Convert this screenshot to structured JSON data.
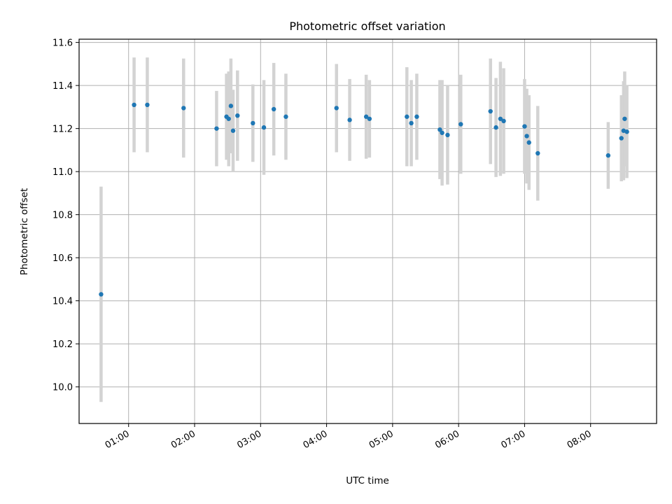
{
  "chart_data": {
    "type": "scatter",
    "title": "Photometric offset variation",
    "xlabel": "UTC time",
    "ylabel": "Photometric offset",
    "grid": true,
    "xlim": [
      "00:15",
      "09:00"
    ],
    "ylim": [
      9.83,
      11.615
    ],
    "xticks": [
      "01:00",
      "02:00",
      "03:00",
      "04:00",
      "05:00",
      "06:00",
      "07:00",
      "08:00"
    ],
    "yticks": [
      10.0,
      10.2,
      10.4,
      10.6,
      10.8,
      11.0,
      11.2,
      11.4,
      11.6
    ],
    "colors": {
      "point": "#1f77b4",
      "errorbar": "#d3d3d3",
      "grid": "#b0b0b0"
    },
    "points": [
      {
        "x": "00:35",
        "y": 10.43,
        "err": 0.5
      },
      {
        "x": "01:05",
        "y": 11.31,
        "err": 0.22
      },
      {
        "x": "01:17",
        "y": 11.31,
        "err": 0.22
      },
      {
        "x": "01:50",
        "y": 11.295,
        "err": 0.23
      },
      {
        "x": "02:20",
        "y": 11.2,
        "err": 0.175
      },
      {
        "x": "02:29",
        "y": 11.255,
        "err": 0.2
      },
      {
        "x": "02:31",
        "y": 11.245,
        "err": 0.22
      },
      {
        "x": "02:33",
        "y": 11.305,
        "err": 0.22
      },
      {
        "x": "02:35",
        "y": 11.19,
        "err": 0.19
      },
      {
        "x": "02:39",
        "y": 11.26,
        "err": 0.21
      },
      {
        "x": "02:53",
        "y": 11.225,
        "err": 0.18
      },
      {
        "x": "03:03",
        "y": 11.205,
        "err": 0.22
      },
      {
        "x": "03:12",
        "y": 11.29,
        "err": 0.215
      },
      {
        "x": "03:23",
        "y": 11.255,
        "err": 0.2
      },
      {
        "x": "04:09",
        "y": 11.295,
        "err": 0.205
      },
      {
        "x": "04:21",
        "y": 11.24,
        "err": 0.19
      },
      {
        "x": "04:36",
        "y": 11.255,
        "err": 0.195
      },
      {
        "x": "04:39",
        "y": 11.245,
        "err": 0.18
      },
      {
        "x": "05:13",
        "y": 11.255,
        "err": 0.23
      },
      {
        "x": "05:17",
        "y": 11.225,
        "err": 0.2
      },
      {
        "x": "05:22",
        "y": 11.255,
        "err": 0.2
      },
      {
        "x": "05:43",
        "y": 11.195,
        "err": 0.23
      },
      {
        "x": "05:45",
        "y": 11.18,
        "err": 0.245
      },
      {
        "x": "05:50",
        "y": 11.17,
        "err": 0.23
      },
      {
        "x": "06:02",
        "y": 11.22,
        "err": 0.23
      },
      {
        "x": "06:29",
        "y": 11.28,
        "err": 0.245
      },
      {
        "x": "06:34",
        "y": 11.205,
        "err": 0.23
      },
      {
        "x": "06:38",
        "y": 11.245,
        "err": 0.265
      },
      {
        "x": "06:41",
        "y": 11.235,
        "err": 0.245
      },
      {
        "x": "07:00",
        "y": 11.21,
        "err": 0.22
      },
      {
        "x": "07:02",
        "y": 11.165,
        "err": 0.22
      },
      {
        "x": "07:04",
        "y": 11.135,
        "err": 0.22
      },
      {
        "x": "07:12",
        "y": 11.085,
        "err": 0.22
      },
      {
        "x": "08:16",
        "y": 11.075,
        "err": 0.155
      },
      {
        "x": "08:28",
        "y": 11.155,
        "err": 0.2
      },
      {
        "x": "08:30",
        "y": 11.19,
        "err": 0.23
      },
      {
        "x": "08:31",
        "y": 11.245,
        "err": 0.22
      },
      {
        "x": "08:33",
        "y": 11.185,
        "err": 0.215
      }
    ]
  }
}
